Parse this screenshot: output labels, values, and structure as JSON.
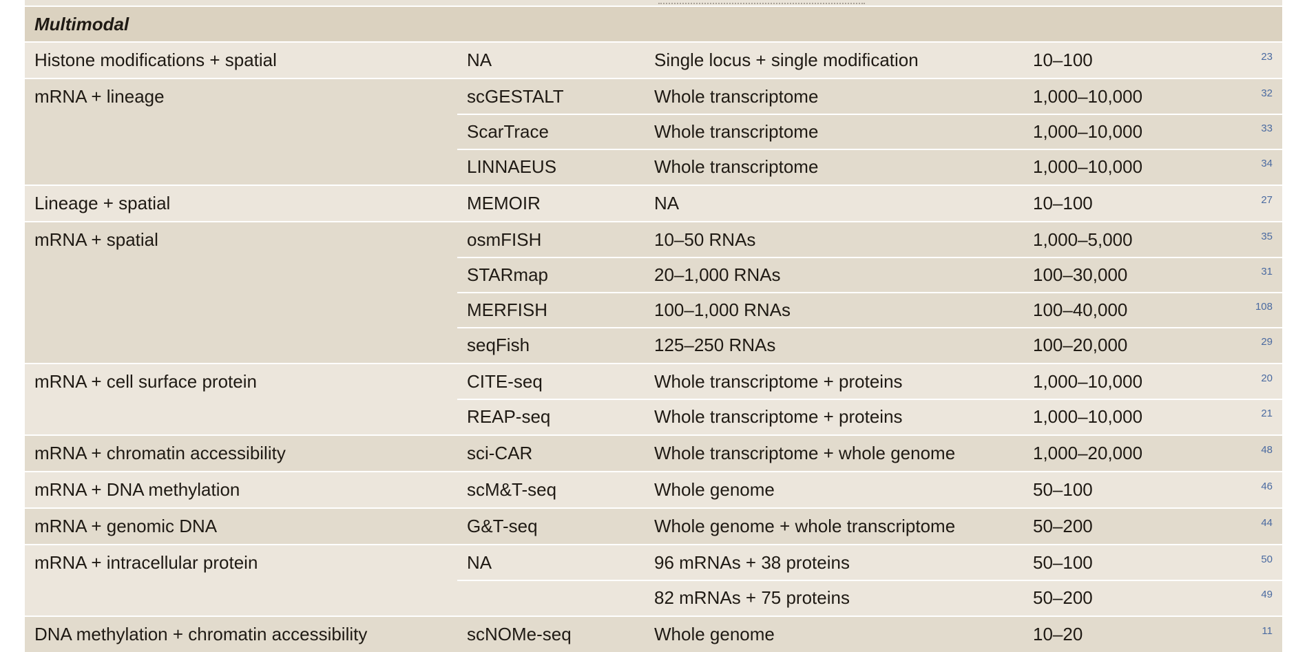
{
  "section_title": "Multimodal",
  "groups": [
    {
      "type": "Histone modifications + spatial",
      "rows": [
        {
          "method": "NA",
          "features": "Single locus + single modification",
          "cells": "10–100",
          "ref": "23"
        }
      ]
    },
    {
      "type": "mRNA + lineage",
      "rows": [
        {
          "method": "scGESTALT",
          "features": "Whole transcriptome",
          "cells": "1,000–10,000",
          "ref": "32"
        },
        {
          "method": "ScarTrace",
          "features": "Whole transcriptome",
          "cells": "1,000–10,000",
          "ref": "33"
        },
        {
          "method": "LINNAEUS",
          "features": "Whole transcriptome",
          "cells": "1,000–10,000",
          "ref": "34"
        }
      ]
    },
    {
      "type": "Lineage + spatial",
      "rows": [
        {
          "method": "MEMOIR",
          "features": "NA",
          "cells": "10–100",
          "ref": "27"
        }
      ]
    },
    {
      "type": "mRNA + spatial",
      "rows": [
        {
          "method": "osmFISH",
          "features": "10–50 RNAs",
          "cells": "1,000–5,000",
          "ref": "35"
        },
        {
          "method": "STARmap",
          "features": "20–1,000 RNAs",
          "cells": "100–30,000",
          "ref": "31"
        },
        {
          "method": "MERFISH",
          "features": "100–1,000 RNAs",
          "cells": "100–40,000",
          "ref": "108"
        },
        {
          "method": "seqFish",
          "features": "125–250 RNAs",
          "cells": "100–20,000",
          "ref": "29"
        }
      ]
    },
    {
      "type": "mRNA + cell surface protein",
      "rows": [
        {
          "method": "CITE-seq",
          "features": "Whole transcriptome + proteins",
          "cells": "1,000–10,000",
          "ref": "20"
        },
        {
          "method": "REAP-seq",
          "features": "Whole transcriptome + proteins",
          "cells": "1,000–10,000",
          "ref": "21"
        }
      ]
    },
    {
      "type": "mRNA + chromatin accessibility",
      "rows": [
        {
          "method": "sci-CAR",
          "features": "Whole transcriptome + whole genome",
          "cells": "1,000–20,000",
          "ref": "48"
        }
      ]
    },
    {
      "type": "mRNA + DNA methylation",
      "rows": [
        {
          "method": "scM&T-seq",
          "features": "Whole genome",
          "cells": "50–100",
          "ref": "46"
        }
      ]
    },
    {
      "type": "mRNA + genomic DNA",
      "rows": [
        {
          "method": "G&T-seq",
          "features": "Whole genome + whole transcriptome",
          "cells": "50–200",
          "ref": "44"
        }
      ]
    },
    {
      "type": "mRNA + intracellular protein",
      "rows": [
        {
          "method": "NA",
          "features": "96 mRNAs + 38 proteins",
          "cells": "50–100",
          "ref": "50"
        },
        {
          "method": "",
          "features": "82 mRNAs + 75 proteins",
          "cells": "50–200",
          "ref": "49"
        }
      ]
    },
    {
      "type": "DNA methylation + chromatin accessibility",
      "rows": [
        {
          "method": "scNOMe-seq",
          "features": "Whole genome",
          "cells": "10–20",
          "ref": "11"
        }
      ]
    }
  ]
}
